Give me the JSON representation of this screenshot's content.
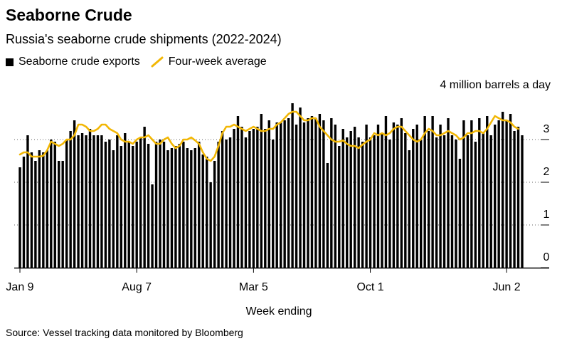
{
  "header": {
    "title": "Seaborne Crude",
    "subtitle": "Russia's seaborne crude shipments (2022-2024)"
  },
  "legend": {
    "bars_label": "Seaborne crude exports",
    "line_label": "Four-week average"
  },
  "footer": {
    "source": "Source: Vessel tracking data monitored by Bloomberg"
  },
  "colors": {
    "bars": "#000000",
    "line": "#f2b705",
    "gridline": "#000000"
  },
  "chart_data": {
    "type": "bar",
    "title": "Seaborne Crude",
    "subtitle": "Russia's seaborne crude shipments (2022-2024)",
    "xlabel": "Week ending",
    "ylabel": "4 million barrels a day",
    "ylim": [
      0,
      4
    ],
    "yticks": [
      0,
      1,
      2,
      3
    ],
    "ytick_labels": [
      "0",
      "1",
      "2",
      "3"
    ],
    "xtick_labels": [
      {
        "label": "Jan 9",
        "index": 0
      },
      {
        "label": "Aug 7",
        "index": 30
      },
      {
        "label": "Mar 5",
        "index": 60
      },
      {
        "label": "Oct 1",
        "index": 90
      },
      {
        "label": "Jun 2",
        "index": 125
      }
    ],
    "series": [
      {
        "name": "Seaborne crude exports",
        "type": "bar",
        "values": [
          2.35,
          2.6,
          3.1,
          2.7,
          2.5,
          2.75,
          2.7,
          2.75,
          3.0,
          2.95,
          2.5,
          2.5,
          3.0,
          3.2,
          3.45,
          3.1,
          3.15,
          3.1,
          3.25,
          3.1,
          3.1,
          3.1,
          2.95,
          3.0,
          2.75,
          3.1,
          2.85,
          3.15,
          2.95,
          2.85,
          2.95,
          3.05,
          3.3,
          2.9,
          1.95,
          2.95,
          3.0,
          2.95,
          2.75,
          2.8,
          2.85,
          2.9,
          2.95,
          2.8,
          2.75,
          2.8,
          2.95,
          2.65,
          2.6,
          2.0,
          2.5,
          2.95,
          3.2,
          3.0,
          3.05,
          3.25,
          3.55,
          3.3,
          3.05,
          3.2,
          3.25,
          3.3,
          3.6,
          3.25,
          3.45,
          3.0,
          3.4,
          3.4,
          3.45,
          3.5,
          3.85,
          3.35,
          3.75,
          3.4,
          3.5,
          3.55,
          3.5,
          3.6,
          3.45,
          2.45,
          3.5,
          3.35,
          2.85,
          3.25,
          3.05,
          3.2,
          3.3,
          3.05,
          2.95,
          3.35,
          3.05,
          3.1,
          3.35,
          3.15,
          3.55,
          3.0,
          3.4,
          3.35,
          3.5,
          3.15,
          2.75,
          3.25,
          3.35,
          3.0,
          3.55,
          3.2,
          3.55,
          3.05,
          3.35,
          3.1,
          3.5,
          3.1,
          3.0,
          2.55,
          3.45,
          3.1,
          3.45,
          2.95,
          3.5,
          3.15,
          3.55,
          3.1,
          3.35,
          3.45,
          3.65,
          3.45,
          3.6,
          3.2,
          3.3,
          3.1
        ]
      },
      {
        "name": "Four-week average",
        "type": "line",
        "values": [
          2.65,
          2.7,
          2.7,
          2.6,
          2.6,
          2.6,
          2.62,
          2.75,
          2.95,
          2.9,
          2.85,
          2.9,
          3.0,
          3.0,
          3.1,
          3.35,
          3.35,
          3.3,
          3.2,
          3.2,
          3.25,
          3.35,
          3.35,
          3.25,
          3.2,
          3.15,
          3.0,
          2.95,
          2.95,
          2.9,
          3.0,
          3.05,
          3.05,
          3.1,
          3.0,
          2.9,
          2.9,
          3.0,
          3.05,
          2.9,
          2.8,
          2.85,
          3.0,
          3.0,
          3.05,
          2.98,
          2.9,
          2.7,
          2.55,
          2.5,
          2.6,
          2.85,
          3.15,
          3.3,
          3.3,
          3.35,
          3.3,
          3.25,
          3.2,
          3.25,
          3.3,
          3.25,
          3.2,
          3.2,
          3.25,
          3.25,
          3.35,
          3.4,
          3.5,
          3.6,
          3.65,
          3.65,
          3.55,
          3.45,
          3.45,
          3.5,
          3.5,
          3.3,
          3.2,
          3.1,
          3.0,
          2.95,
          2.95,
          2.98,
          2.9,
          2.85,
          2.85,
          2.8,
          2.88,
          2.95,
          3.0,
          3.15,
          3.1,
          3.15,
          3.1,
          3.15,
          3.25,
          3.3,
          3.3,
          3.2,
          3.1,
          3.0,
          2.95,
          3.0,
          3.15,
          3.25,
          3.2,
          3.1,
          3.1,
          3.15,
          3.2,
          3.15,
          3.1,
          3.0,
          3.05,
          3.15,
          3.15,
          3.2,
          3.2,
          3.15,
          3.25,
          3.4,
          3.55,
          3.5,
          3.45,
          3.45,
          3.4,
          3.3,
          3.25
        ]
      }
    ],
    "legend_position": "top-left"
  }
}
